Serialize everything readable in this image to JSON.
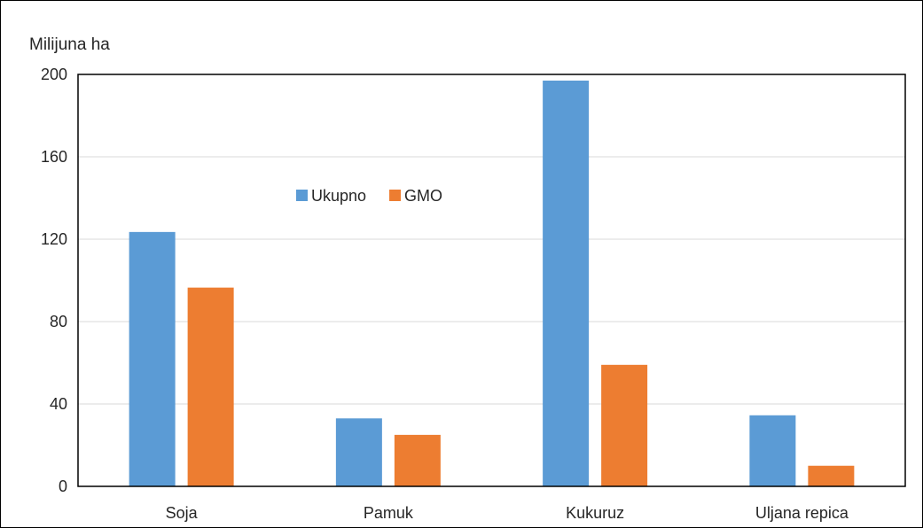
{
  "chart_data": {
    "type": "bar",
    "title": "",
    "ylabel": "Milijuna ha",
    "xlabel": "",
    "categories": [
      "Soja",
      "Pamuk",
      "Kukuruz",
      "Uljana repica"
    ],
    "series": [
      {
        "name": "Ukupno",
        "color": "#5b9bd5",
        "values": [
          123.5,
          33,
          197,
          34.5
        ]
      },
      {
        "name": "GMO",
        "color": "#ed7d31",
        "values": [
          96.5,
          25,
          59,
          10
        ]
      }
    ],
    "ylim": [
      0,
      200
    ],
    "yticks": [
      "0",
      "40",
      "80",
      "120",
      "160",
      "200"
    ],
    "grid": true,
    "legend_position": "top-center"
  }
}
